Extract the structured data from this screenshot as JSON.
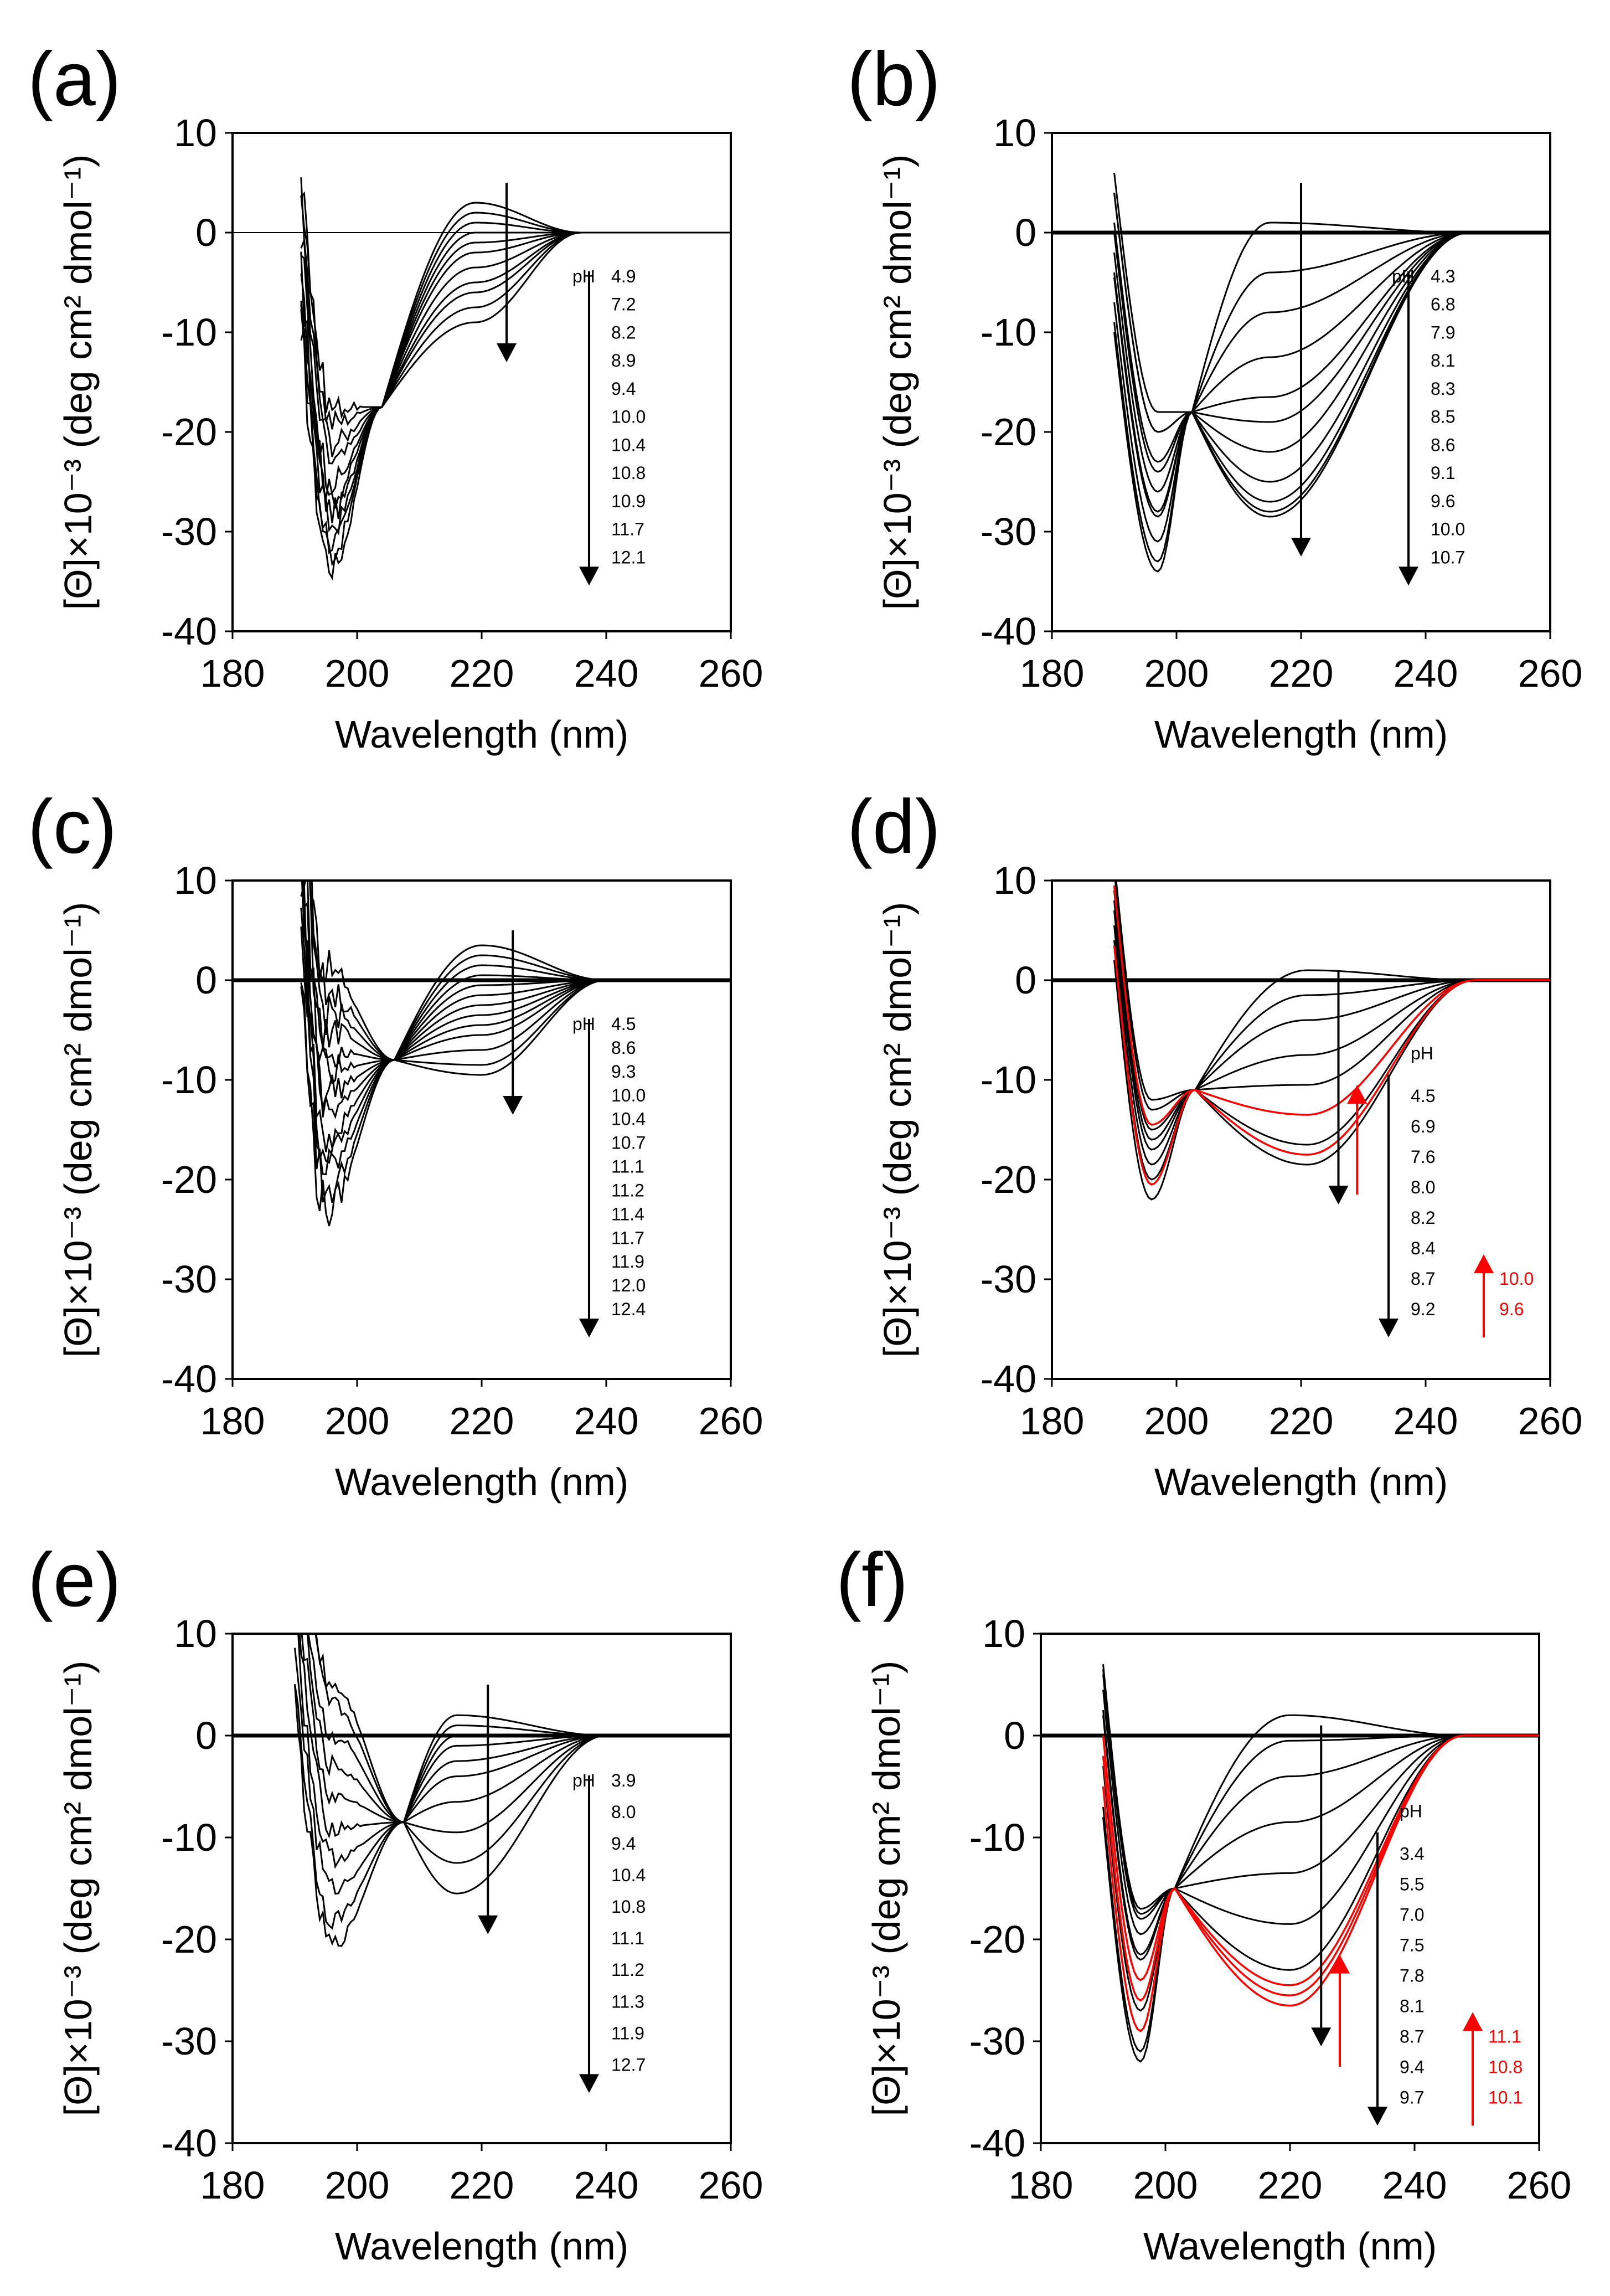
{
  "colors": {
    "ink": "#000000",
    "accent": "#ff0000",
    "background": "#ffffff"
  },
  "chart_data": [
    {
      "panel": "(a)",
      "type": "line",
      "xlabel": "Wavelength (nm)",
      "ylabel": "[Θ]×10⁻³ (deg cm² dmol⁻¹)",
      "xlim": [
        180,
        260
      ],
      "ylim": [
        -40,
        10
      ],
      "xticks": [
        "180",
        "200",
        "220",
        "240",
        "260"
      ],
      "yticks": [
        "10",
        "0",
        "-10",
        "-20",
        "-30",
        "-40"
      ],
      "legend_title": "pH",
      "legend": [
        "4.9",
        "7.2",
        "8.2",
        "8.9",
        "9.4",
        "10.0",
        "10.4",
        "10.8",
        "10.9",
        "11.7",
        "12.1"
      ],
      "red_legend": [],
      "model": {
        "start": 191,
        "dip": 196,
        "iso": 204,
        "iso_y": -17.5,
        "band": 219,
        "end": 236,
        "noise": 3
      },
      "series": [
        {
          "name": "4.9",
          "min": -33.5,
          "plateau": 3.0
        },
        {
          "name": "7.2",
          "min": -32.0,
          "plateau": 2.0
        },
        {
          "name": "8.2",
          "min": -31.0,
          "plateau": 1.0
        },
        {
          "name": "8.9",
          "min": -29.5,
          "plateau": 0.0
        },
        {
          "name": "9.4",
          "min": -28.0,
          "plateau": -1.0
        },
        {
          "name": "10.0",
          "min": -26.5,
          "plateau": -2.0
        },
        {
          "name": "10.4",
          "min": -25.0,
          "plateau": -3.5
        },
        {
          "name": "10.8",
          "min": -23.0,
          "plateau": -5.0
        },
        {
          "name": "10.9",
          "min": -21.0,
          "plateau": -6.0
        },
        {
          "name": "11.7",
          "min": -19.0,
          "plateau": -7.5
        },
        {
          "name": "12.1",
          "min": -17.5,
          "plateau": -9.0
        }
      ],
      "red_series": []
    },
    {
      "panel": "(b)",
      "type": "line",
      "xlabel": "Wavelength (nm)",
      "ylabel": "[Θ]×10⁻³ (deg cm² dmol⁻¹)",
      "xlim": [
        180,
        260
      ],
      "ylim": [
        -40,
        10
      ],
      "xticks": [
        "180",
        "200",
        "220",
        "240",
        "260"
      ],
      "yticks": [
        "10",
        "0",
        "-10",
        "-20",
        "-30",
        "-40"
      ],
      "legend_title": "pH",
      "legend": [
        "4.3",
        "6.8",
        "7.9",
        "8.1",
        "8.3",
        "8.5",
        "8.6",
        "9.1",
        "9.6",
        "10.0",
        "10.7"
      ],
      "red_legend": [],
      "model": {
        "start": 190,
        "dip": 197,
        "iso": 202.5,
        "iso_y": -18,
        "band": 215,
        "end": 247,
        "noise": 0
      },
      "series": [
        {
          "name": "4.3",
          "min": -28.5,
          "plateau": 1.0
        },
        {
          "name": "6.8",
          "min": -26.0,
          "plateau": -4.0
        },
        {
          "name": "7.9",
          "min": -23.0,
          "plateau": -8.0
        },
        {
          "name": "8.1",
          "min": -20.0,
          "plateau": -12.5
        },
        {
          "name": "8.3",
          "min": -18.0,
          "plateau": -16.5
        },
        {
          "name": "8.5",
          "min": -20.0,
          "plateau": -19.0
        },
        {
          "name": "8.6",
          "min": -24.0,
          "plateau": -22.0
        },
        {
          "name": "9.1",
          "min": -28.0,
          "plateau": -25.0
        },
        {
          "name": "9.6",
          "min": -31.0,
          "plateau": -27.0
        },
        {
          "name": "10.0",
          "min": -33.0,
          "plateau": -28.0
        },
        {
          "name": "10.7",
          "min": -34.0,
          "plateau": -28.5
        }
      ],
      "red_series": []
    },
    {
      "panel": "(c)",
      "type": "line",
      "xlabel": "Wavelength (nm)",
      "ylabel": "[Θ]×10⁻³ (deg cm² dmol⁻¹)",
      "xlim": [
        180,
        260
      ],
      "ylim": [
        -40,
        10
      ],
      "xticks": [
        "180",
        "200",
        "220",
        "240",
        "260"
      ],
      "yticks": [
        "10",
        "0",
        "-10",
        "-20",
        "-30",
        "-40"
      ],
      "legend_title": "pH",
      "legend": [
        "4.5",
        "8.6",
        "9.3",
        "10.0",
        "10.4",
        "10.7",
        "11.1",
        "11.2",
        "11.4",
        "11.7",
        "11.9",
        "12.0",
        "12.4"
      ],
      "red_legend": [],
      "model": {
        "start": 191,
        "dip": 195,
        "iso": 206,
        "iso_y": -8,
        "band": 220,
        "end": 240,
        "noise": 5
      },
      "series": [
        {
          "name": "4.5",
          "min": -23.0,
          "plateau": 3.5
        },
        {
          "name": "8.6",
          "min": -21.0,
          "plateau": 2.5
        },
        {
          "name": "9.3",
          "min": -19.0,
          "plateau": 1.5
        },
        {
          "name": "10.0",
          "min": -17.0,
          "plateau": 0.5
        },
        {
          "name": "10.4",
          "min": -15.0,
          "plateau": -0.5
        },
        {
          "name": "10.7",
          "min": -13.0,
          "plateau": -1.5
        },
        {
          "name": "11.1",
          "min": -11.0,
          "plateau": -2.5
        },
        {
          "name": "11.2",
          "min": -9.0,
          "plateau": -3.5
        },
        {
          "name": "11.4",
          "min": -7.0,
          "plateau": -4.5
        },
        {
          "name": "11.7",
          "min": -5.0,
          "plateau": -5.5
        },
        {
          "name": "11.9",
          "min": -3.0,
          "plateau": -7.0
        },
        {
          "name": "12.0",
          "min": -1.0,
          "plateau": -8.5
        },
        {
          "name": "12.4",
          "min": 1.0,
          "plateau": -9.5
        }
      ],
      "red_series": []
    },
    {
      "panel": "(d)",
      "type": "line",
      "xlabel": "Wavelength (nm)",
      "ylabel": "[Θ]×10⁻³ (deg cm² dmol⁻¹)",
      "xlim": [
        180,
        260
      ],
      "ylim": [
        -40,
        10
      ],
      "xticks": [
        "180",
        "200",
        "220",
        "240",
        "260"
      ],
      "yticks": [
        "10",
        "0",
        "-10",
        "-20",
        "-30",
        "-40"
      ],
      "legend_title": "pH",
      "legend": [
        "4.5",
        "6.9",
        "7.6",
        "8.0",
        "8.2",
        "8.4",
        "8.7",
        "9.2"
      ],
      "red_legend": [
        "10.0",
        "9.6"
      ],
      "model": {
        "start": 190,
        "dip": 196,
        "iso": 203,
        "iso_y": -11,
        "band": 221,
        "end": 248,
        "noise": 0
      },
      "series": [
        {
          "name": "4.5",
          "min": -18.5,
          "plateau": 1.0
        },
        {
          "name": "6.9",
          "min": -17.0,
          "plateau": -1.5
        },
        {
          "name": "7.6",
          "min": -15.0,
          "plateau": -4.0
        },
        {
          "name": "8.0",
          "min": -12.0,
          "plateau": -7.5
        },
        {
          "name": "8.2",
          "min": -13.0,
          "plateau": -10.5
        },
        {
          "name": "8.4",
          "min": -16.0,
          "plateau": -13.5
        },
        {
          "name": "8.7",
          "min": -20.0,
          "plateau": -16.5
        },
        {
          "name": "9.2",
          "min": -22.0,
          "plateau": -18.5
        }
      ],
      "red_series": [
        {
          "name": "10.0",
          "min": -14.5,
          "plateau": -13.5
        },
        {
          "name": "9.6",
          "min": -20.5,
          "plateau": -17.5
        }
      ]
    },
    {
      "panel": "(e)",
      "type": "line",
      "xlabel": "Wavelength (nm)",
      "ylabel": "[Θ]×10⁻³ (deg cm² dmol⁻¹)",
      "xlim": [
        180,
        260
      ],
      "ylim": [
        -40,
        10
      ],
      "xticks": [
        "180",
        "200",
        "220",
        "240",
        "260"
      ],
      "yticks": [
        "10",
        "0",
        "-10",
        "-20",
        "-30",
        "-40"
      ],
      "legend_title": "pH",
      "legend": [
        "3.9",
        "8.0",
        "9.4",
        "10.4",
        "10.8",
        "11.1",
        "11.2",
        "11.3",
        "11.9",
        "12.7"
      ],
      "red_legend": [],
      "model": {
        "start": 190,
        "dip": 196,
        "iso": 207.5,
        "iso_y": -8.5,
        "band": 216,
        "end": 240,
        "noise": 2
      },
      "series": [
        {
          "name": "3.9",
          "min": -20.5,
          "plateau": 2.0
        },
        {
          "name": "8.0",
          "min": -18.0,
          "plateau": 1.0
        },
        {
          "name": "9.4",
          "min": -15.0,
          "plateau": 0.0
        },
        {
          "name": "10.4",
          "min": -12.0,
          "plateau": -1.0
        },
        {
          "name": "10.8",
          "min": -9.0,
          "plateau": -2.5
        },
        {
          "name": "11.1",
          "min": -6.0,
          "plateau": -4.0
        },
        {
          "name": "11.2",
          "min": -3.0,
          "plateau": -6.5
        },
        {
          "name": "11.3",
          "min": 0.0,
          "plateau": -9.5
        },
        {
          "name": "11.9",
          "min": 3.0,
          "plateau": -12.5
        },
        {
          "name": "12.7",
          "min": 5.0,
          "plateau": -15.5
        }
      ],
      "red_series": []
    },
    {
      "panel": "(f)",
      "type": "line",
      "xlabel": "Wavelength (nm)",
      "ylabel": "[Θ]×10⁻³ (deg cm² dmol⁻¹)",
      "xlim": [
        180,
        260
      ],
      "ylim": [
        -40,
        10
      ],
      "xticks": [
        "180",
        "200",
        "220",
        "240",
        "260"
      ],
      "yticks": [
        "10",
        "0",
        "-10",
        "-20",
        "-30",
        "-40"
      ],
      "legend_title": "pH",
      "legend": [
        "3.4",
        "5.5",
        "7.0",
        "7.5",
        "7.8",
        "8.1",
        "8.7",
        "9.4",
        "9.7"
      ],
      "red_legend": [
        "11.1",
        "10.8",
        "10.1"
      ],
      "model": {
        "start": 190,
        "dip": 196,
        "iso": 201.5,
        "iso_y": -15,
        "band": 220,
        "end": 248,
        "noise": 0
      },
      "series": [
        {
          "name": "3.4",
          "min": -21.5,
          "plateau": 2.0
        },
        {
          "name": "5.5",
          "min": -19.5,
          "plateau": -0.5
        },
        {
          "name": "7.0",
          "min": -18.0,
          "plateau": -4.0
        },
        {
          "name": "7.5",
          "min": -17.0,
          "plateau": -8.5
        },
        {
          "name": "7.8",
          "min": -17.5,
          "plateau": -13.5
        },
        {
          "name": "8.1",
          "min": -22.0,
          "plateau": -18.5
        },
        {
          "name": "8.7",
          "min": -27.0,
          "plateau": -23.0
        },
        {
          "name": "9.4",
          "min": -31.0,
          "plateau": -25.5
        },
        {
          "name": "9.7",
          "min": -32.0,
          "plateau": -26.5
        }
      ],
      "red_series": [
        {
          "name": "11.1",
          "min": -24.0,
          "plateau": -24.5
        },
        {
          "name": "10.8",
          "min": -26.0,
          "plateau": -25.5
        },
        {
          "name": "10.1",
          "min": -29.0,
          "plateau": -26.5
        }
      ]
    }
  ]
}
